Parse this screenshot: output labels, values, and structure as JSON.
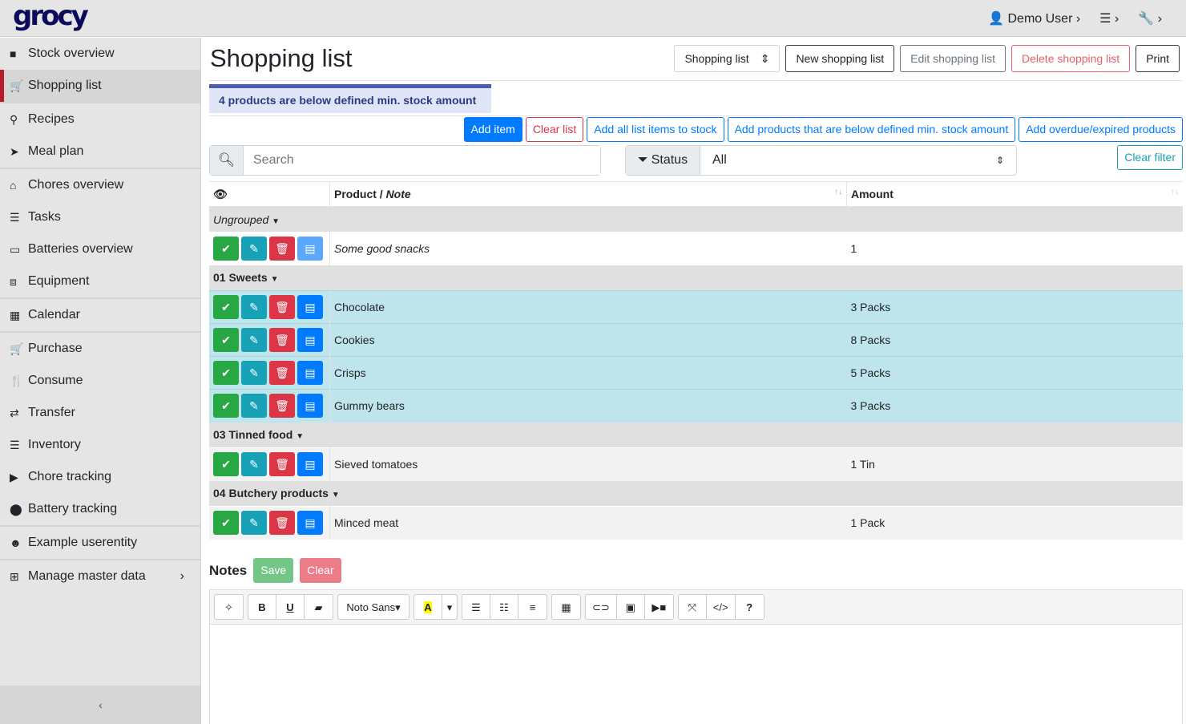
{
  "app": {
    "logo": "grocy",
    "user": "Demo User",
    "user_chevron": "›",
    "settings_icon": "☰ ›",
    "tools_icon": "🔧 ›"
  },
  "sidebar": {
    "items": [
      {
        "icon": "■",
        "label": "Stock overview"
      },
      {
        "icon": "🛒",
        "label": "Shopping list",
        "active": true
      },
      {
        "icon": "⚲",
        "label": "Recipes"
      },
      {
        "icon": "➤",
        "label": "Meal plan"
      },
      {
        "icon": "⌂",
        "label": "Chores overview"
      },
      {
        "icon": "☰",
        "label": "Tasks"
      },
      {
        "icon": "▭",
        "label": "Batteries overview"
      },
      {
        "icon": "⧈",
        "label": "Equipment"
      },
      {
        "icon": "▦",
        "label": "Calendar"
      },
      {
        "icon": "🛒",
        "label": "Purchase"
      },
      {
        "icon": "🍴",
        "label": "Consume"
      },
      {
        "icon": "⇄",
        "label": "Transfer"
      },
      {
        "icon": "☰",
        "label": "Inventory"
      },
      {
        "icon": "▶",
        "label": "Chore tracking"
      },
      {
        "icon": "⬤",
        "label": "Battery tracking"
      },
      {
        "icon": "☻",
        "label": "Example userentity"
      },
      {
        "icon": "⊞",
        "label": "Manage master data",
        "chevron": "›"
      }
    ],
    "collapse": "‹"
  },
  "header": {
    "title": "Shopping list",
    "select": "Shopping list",
    "new": "New shopping list",
    "edit": "Edit shopping list",
    "delete": "Delete shopping list",
    "print": "Print"
  },
  "alert": "4 products are below defined min. stock amount",
  "actions": {
    "add_item": "Add item",
    "clear_list": "Clear list",
    "add_all": "Add all list items to stock",
    "add_below_min": "Add products that are below defined min. stock amount",
    "add_overdue": "Add overdue/expired products"
  },
  "filters": {
    "search_placeholder": "Search",
    "status_label": "Status",
    "status_value": "All",
    "clear_filter": "Clear filter"
  },
  "table": {
    "col_product": "Product / ",
    "col_note": "Note",
    "col_amount": "Amount",
    "groups": [
      {
        "name": "Ungrouped",
        "italic": true,
        "rows": [
          {
            "product": "Some good snacks",
            "amount": "1",
            "note": true
          }
        ]
      },
      {
        "name": "01 Sweets",
        "rows": [
          {
            "product": "Chocolate",
            "amount": "3 Packs",
            "below": true
          },
          {
            "product": "Cookies",
            "amount": "8 Packs",
            "below": true
          },
          {
            "product": "Crisps",
            "amount": "5 Packs",
            "below": true
          },
          {
            "product": "Gummy bears",
            "amount": "3 Packs",
            "below": true
          }
        ]
      },
      {
        "name": "03 Tinned food",
        "rows": [
          {
            "product": "Sieved tomatoes",
            "amount": "1 Tin"
          }
        ]
      },
      {
        "name": "04 Butchery products",
        "rows": [
          {
            "product": "Minced meat",
            "amount": "1 Pack"
          }
        ]
      }
    ]
  },
  "notes": {
    "title": "Notes",
    "save": "Save",
    "clear": "Clear",
    "font": "Noto Sans"
  },
  "colors": {
    "green": "#28a745",
    "teal": "#17a2b8",
    "red": "#dc3545",
    "blue": "#007bff",
    "highlight": "#bee5eb"
  }
}
